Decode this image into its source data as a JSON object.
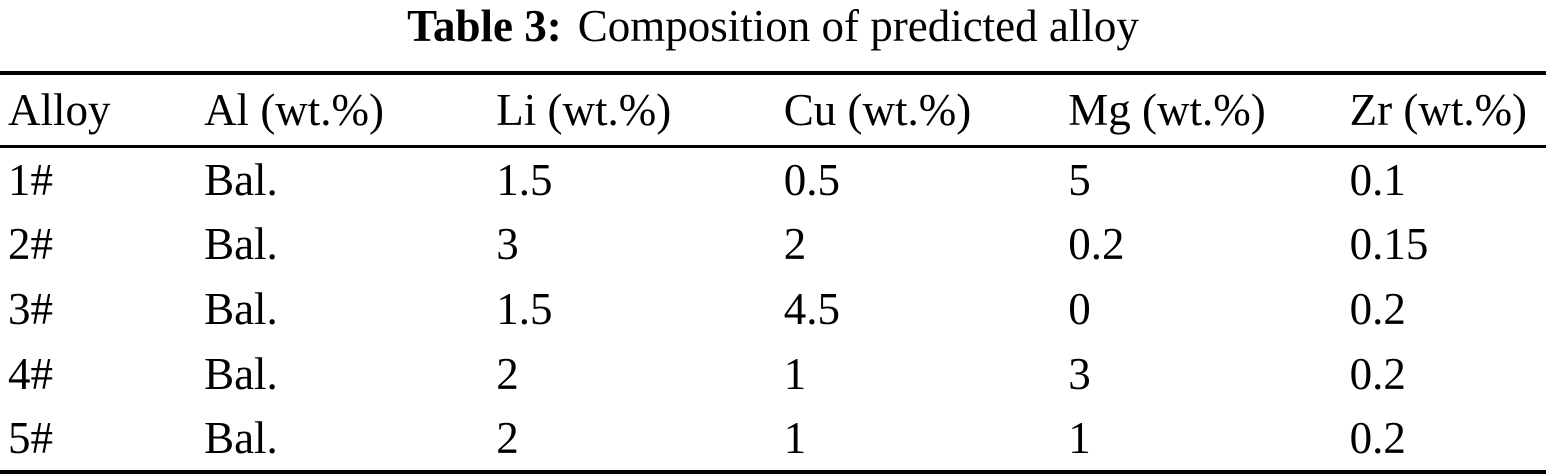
{
  "caption": {
    "label": "Table 3:",
    "text": "Composition of predicted alloy"
  },
  "table": {
    "headers": [
      "Alloy",
      "Al (wt.%)",
      "Li (wt.%)",
      "Cu (wt.%)",
      "Mg (wt.%)",
      "Zr (wt.%)"
    ],
    "rows": [
      [
        "1#",
        "Bal.",
        "1.5",
        "0.5",
        "5",
        "0.1"
      ],
      [
        "2#",
        "Bal.",
        "3",
        "2",
        "0.2",
        "0.15"
      ],
      [
        "3#",
        "Bal.",
        "1.5",
        "4.5",
        "0",
        "0.2"
      ],
      [
        "4#",
        "Bal.",
        "2",
        "1",
        "3",
        "0.2"
      ],
      [
        "5#",
        "Bal.",
        "2",
        "1",
        "1",
        "0.2"
      ]
    ]
  },
  "chart_data": {
    "type": "table",
    "title": "Table 3: Composition of predicted alloy",
    "columns": [
      "Alloy",
      "Al (wt.%)",
      "Li (wt.%)",
      "Cu (wt.%)",
      "Mg (wt.%)",
      "Zr (wt.%)"
    ],
    "rows": [
      [
        "1#",
        "Bal.",
        1.5,
        0.5,
        5,
        0.1
      ],
      [
        "2#",
        "Bal.",
        3,
        2,
        0.2,
        0.15
      ],
      [
        "3#",
        "Bal.",
        1.5,
        4.5,
        0,
        0.2
      ],
      [
        "4#",
        "Bal.",
        2,
        1,
        3,
        0.2
      ],
      [
        "5#",
        "Bal.",
        2,
        1,
        1,
        0.2
      ]
    ]
  },
  "colors": {
    "text": "#000000",
    "background": "#ffffff",
    "rule": "#000000"
  }
}
